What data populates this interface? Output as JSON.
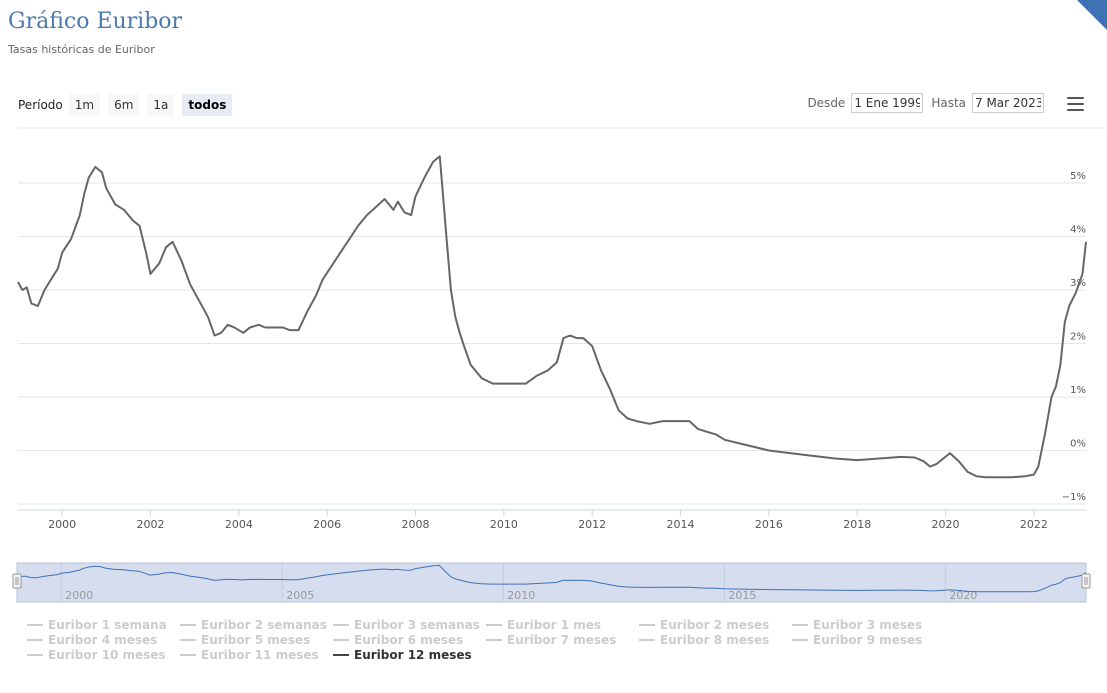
{
  "header": {
    "title": "Gráfico Euribor",
    "subtitle": "Tasas históricas de Euribor"
  },
  "range_selector": {
    "label": "Período",
    "buttons": [
      "1m",
      "6m",
      "1a",
      "todos"
    ],
    "active": "todos"
  },
  "date_range": {
    "from_label": "Desde",
    "from_value": "1 Ene 1999",
    "to_label": "Hasta",
    "to_value": "7 Mar 2023"
  },
  "colors": {
    "title": "#4a7ab0",
    "line": "#666666",
    "navigator_fill": "#d6ddee",
    "navigator_line": "#3f72b5",
    "accent": "#3f72b5"
  },
  "chart_data": {
    "type": "line",
    "title": "Gráfico Euribor",
    "subtitle": "Tasas históricas de Euribor",
    "x_ticks": [
      "2000",
      "2002",
      "2004",
      "2006",
      "2008",
      "2010",
      "2012",
      "2014",
      "2016",
      "2018",
      "2020",
      "2022"
    ],
    "y_ticks": [
      "−1%",
      "0%",
      "1%",
      "2%",
      "3%",
      "4%",
      "5%"
    ],
    "xlim": [
      1999.0,
      2023.18
    ],
    "ylim": [
      -1,
      5
    ],
    "grid": true,
    "navigator_ticks": [
      "2000",
      "2005",
      "2010",
      "2015",
      "2020"
    ],
    "series": [
      {
        "name": "Euribor 12 meses",
        "x": [
          1999.0,
          1999.1,
          1999.2,
          1999.3,
          1999.45,
          1999.6,
          1999.75,
          1999.9,
          2000.0,
          2000.2,
          2000.4,
          2000.5,
          2000.6,
          2000.75,
          2000.9,
          2001.0,
          2001.2,
          2001.4,
          2001.6,
          2001.75,
          2001.9,
          2002.0,
          2002.2,
          2002.35,
          2002.5,
          2002.7,
          2002.9,
          2003.1,
          2003.3,
          2003.45,
          2003.6,
          2003.75,
          2003.9,
          2004.1,
          2004.25,
          2004.45,
          2004.6,
          2004.8,
          2005.0,
          2005.15,
          2005.35,
          2005.55,
          2005.75,
          2005.9,
          2006.1,
          2006.3,
          2006.5,
          2006.7,
          2006.9,
          2007.1,
          2007.3,
          2007.5,
          2007.6,
          2007.75,
          2007.9,
          2008.0,
          2008.2,
          2008.4,
          2008.55,
          2008.7,
          2008.8,
          2008.9,
          2009.0,
          2009.1,
          2009.25,
          2009.5,
          2009.75,
          2010.0,
          2010.25,
          2010.5,
          2010.75,
          2011.0,
          2011.2,
          2011.35,
          2011.5,
          2011.65,
          2011.8,
          2012.0,
          2012.2,
          2012.4,
          2012.6,
          2012.8,
          2013.0,
          2013.3,
          2013.6,
          2013.9,
          2014.2,
          2014.4,
          2014.6,
          2014.8,
          2015.0,
          2015.5,
          2016.0,
          2016.5,
          2017.0,
          2017.5,
          2018.0,
          2018.5,
          2019.0,
          2019.3,
          2019.5,
          2019.65,
          2019.8,
          2019.95,
          2020.1,
          2020.3,
          2020.5,
          2020.7,
          2020.9,
          2021.2,
          2021.5,
          2021.8,
          2022.0,
          2022.1,
          2022.25,
          2022.4,
          2022.5,
          2022.6,
          2022.7,
          2022.8,
          2022.95,
          2023.1,
          2023.18
        ],
        "values": [
          3.15,
          3.0,
          3.05,
          2.75,
          2.7,
          3.0,
          3.2,
          3.4,
          3.7,
          3.95,
          4.4,
          4.8,
          5.1,
          5.3,
          5.2,
          4.9,
          4.6,
          4.5,
          4.3,
          4.2,
          3.7,
          3.3,
          3.5,
          3.8,
          3.9,
          3.55,
          3.1,
          2.8,
          2.5,
          2.15,
          2.2,
          2.35,
          2.3,
          2.2,
          2.3,
          2.35,
          2.3,
          2.3,
          2.3,
          2.25,
          2.25,
          2.6,
          2.9,
          3.2,
          3.45,
          3.7,
          3.95,
          4.2,
          4.4,
          4.55,
          4.7,
          4.5,
          4.65,
          4.45,
          4.4,
          4.75,
          5.1,
          5.4,
          5.5,
          4.0,
          3.0,
          2.5,
          2.2,
          1.95,
          1.6,
          1.35,
          1.25,
          1.25,
          1.25,
          1.25,
          1.4,
          1.5,
          1.65,
          2.1,
          2.15,
          2.1,
          2.1,
          1.95,
          1.5,
          1.15,
          0.75,
          0.6,
          0.55,
          0.5,
          0.55,
          0.55,
          0.55,
          0.4,
          0.35,
          0.3,
          0.2,
          0.1,
          0.0,
          -0.05,
          -0.1,
          -0.15,
          -0.18,
          -0.15,
          -0.12,
          -0.13,
          -0.2,
          -0.3,
          -0.25,
          -0.15,
          -0.05,
          -0.2,
          -0.4,
          -0.48,
          -0.5,
          -0.5,
          -0.5,
          -0.48,
          -0.45,
          -0.3,
          0.3,
          1.0,
          1.2,
          1.6,
          2.4,
          2.7,
          2.95,
          3.3,
          3.9
        ]
      }
    ],
    "legend": [
      [
        "Euribor 1 semana",
        "Euribor 2 semanas",
        "Euribor 3 semanas",
        "Euribor 1 mes",
        "Euribor 2 meses",
        "Euribor 3 meses"
      ],
      [
        "Euribor 4 meses",
        "Euribor 5 meses",
        "Euribor 6 meses",
        "Euribor 7 meses",
        "Euribor 8 meses",
        "Euribor 9 meses"
      ],
      [
        "Euribor 10 meses",
        "Euribor 11 meses",
        "Euribor 12 meses"
      ]
    ],
    "legend_active": "Euribor 12 meses"
  }
}
